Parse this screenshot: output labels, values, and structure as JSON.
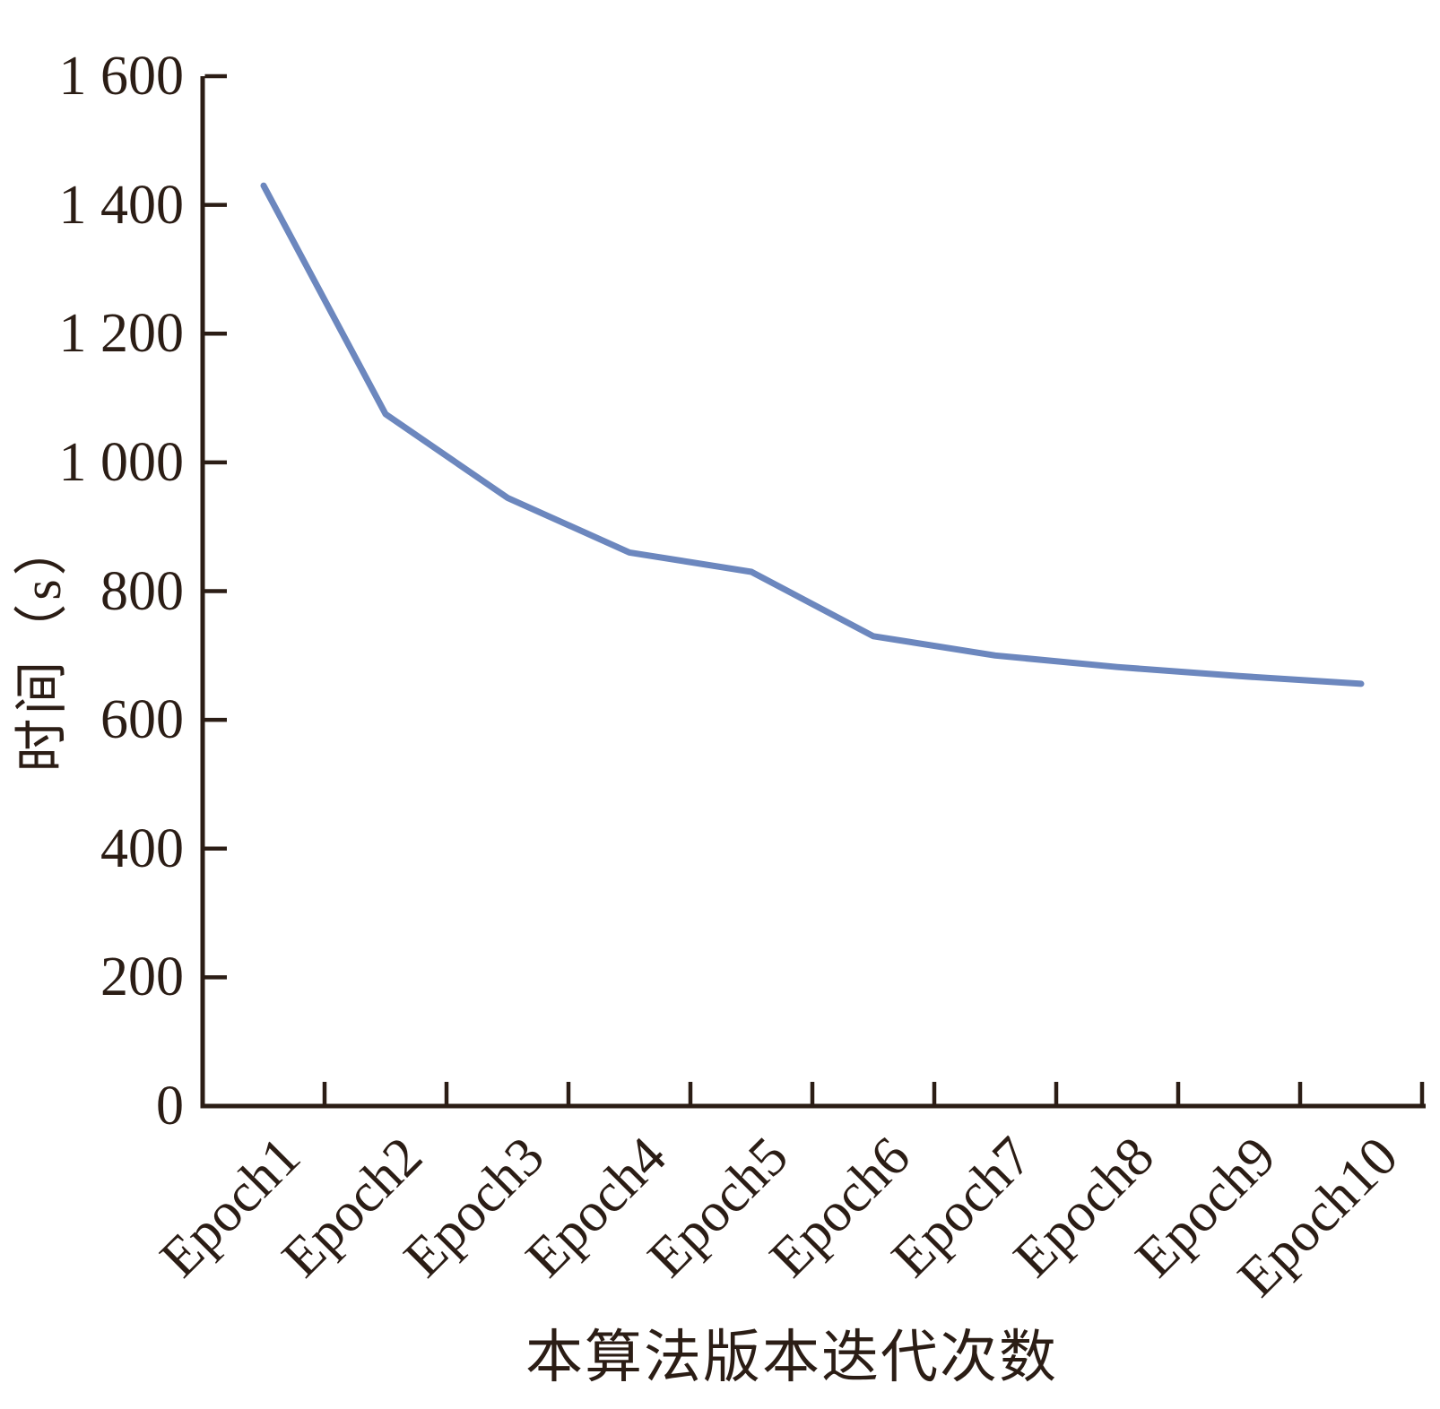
{
  "chart_data": {
    "type": "line",
    "title": "",
    "xlabel": "本算法版本迭代次数",
    "ylabel": "时间（s）",
    "categories": [
      "Epoch1",
      "Epoch2",
      "Epoch3",
      "Epoch4",
      "Epoch5",
      "Epoch6",
      "Epoch7",
      "Epoch8",
      "Epoch9",
      "Epoch10"
    ],
    "values": [
      1430,
      1075,
      945,
      860,
      830,
      730,
      700,
      682,
      668,
      656
    ],
    "ylim": [
      0,
      1600
    ],
    "ytick_interval": 200,
    "ytick_labels": [
      "0",
      "200",
      "400",
      "600",
      "800",
      "1 000",
      "1 200",
      "1 400",
      "1 600"
    ],
    "grid": false,
    "legend_position": "none",
    "line_color": "#6C87BE",
    "axis_color": "#2B1D15",
    "background_color": "#FFFFFF"
  }
}
